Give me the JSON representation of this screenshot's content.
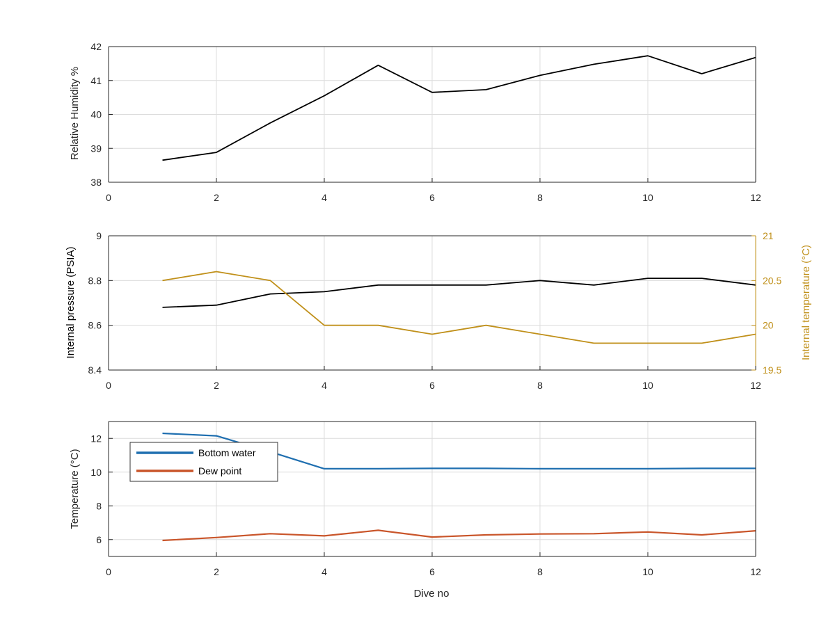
{
  "chart_data": [
    {
      "type": "line",
      "xlabel": "",
      "ylabel": "Relative Humidity %",
      "xlim": [
        0,
        12
      ],
      "ylim": [
        38,
        42
      ],
      "xticks": [
        "0",
        "2",
        "4",
        "6",
        "8",
        "10",
        "12"
      ],
      "yticks": [
        "38",
        "39",
        "40",
        "41",
        "42"
      ],
      "grid": true,
      "series": [
        {
          "color": "#000000",
          "x": [
            1,
            2,
            3,
            4,
            5,
            6,
            7,
            8,
            9,
            10,
            11,
            12
          ],
          "y": [
            38.65,
            38.88,
            39.75,
            40.55,
            41.45,
            40.65,
            40.73,
            41.15,
            41.48,
            41.73,
            41.2,
            41.68
          ]
        }
      ]
    },
    {
      "type": "line",
      "xlabel": "",
      "ylabel": "Internal pressure (PSIA)",
      "ylabel_right": "Internal temperature (°C)",
      "xlim": [
        0,
        12
      ],
      "ylim": [
        8.4,
        9.0
      ],
      "ylim_right": [
        19.5,
        21
      ],
      "xticks": [
        "0",
        "2",
        "4",
        "6",
        "8",
        "10",
        "12"
      ],
      "yticks": [
        "8.4",
        "8.6",
        "8.8",
        "9"
      ],
      "yticks_right": [
        "19.5",
        "20",
        "20.5",
        "21"
      ],
      "grid": true,
      "right_axis_color": "#c0901a",
      "series": [
        {
          "axis": "left",
          "color": "#000000",
          "x": [
            1,
            2,
            3,
            4,
            5,
            6,
            7,
            8,
            9,
            10,
            11,
            12
          ],
          "y": [
            8.68,
            8.69,
            8.74,
            8.75,
            8.78,
            8.78,
            8.78,
            8.8,
            8.78,
            8.81,
            8.81,
            8.78
          ]
        },
        {
          "axis": "right",
          "color": "#c0901a",
          "x": [
            1,
            2,
            3,
            4,
            5,
            6,
            7,
            8,
            9,
            10,
            11,
            12
          ],
          "y": [
            20.5,
            20.6,
            20.5,
            20.0,
            20.0,
            19.9,
            20.0,
            19.9,
            19.8,
            19.8,
            19.8,
            19.9
          ]
        }
      ]
    },
    {
      "type": "line",
      "xlabel": "Dive no",
      "ylabel": "Temperature (°C)",
      "xlim": [
        0,
        12
      ],
      "ylim": [
        5,
        13
      ],
      "xticks": [
        "0",
        "2",
        "4",
        "6",
        "8",
        "10",
        "12"
      ],
      "yticks": [
        "6",
        "8",
        "10",
        "12"
      ],
      "ytick_values": [
        6,
        8,
        10,
        12
      ],
      "grid": true,
      "legend_position": "top-left",
      "series": [
        {
          "name": "Bottom water",
          "color": "#1f6fb0",
          "x": [
            1,
            2,
            3,
            4,
            5,
            6,
            7,
            8,
            9,
            10,
            11,
            12
          ],
          "y": [
            12.3,
            12.15,
            11.2,
            10.2,
            10.2,
            10.22,
            10.22,
            10.2,
            10.2,
            10.2,
            10.22,
            10.22
          ]
        },
        {
          "name": "Dew point",
          "color": "#c9552a",
          "x": [
            1,
            2,
            3,
            4,
            5,
            6,
            7,
            8,
            9,
            10,
            11,
            12
          ],
          "y": [
            5.95,
            6.12,
            6.35,
            6.22,
            6.55,
            6.15,
            6.28,
            6.33,
            6.35,
            6.45,
            6.28,
            6.52
          ]
        }
      ]
    }
  ]
}
